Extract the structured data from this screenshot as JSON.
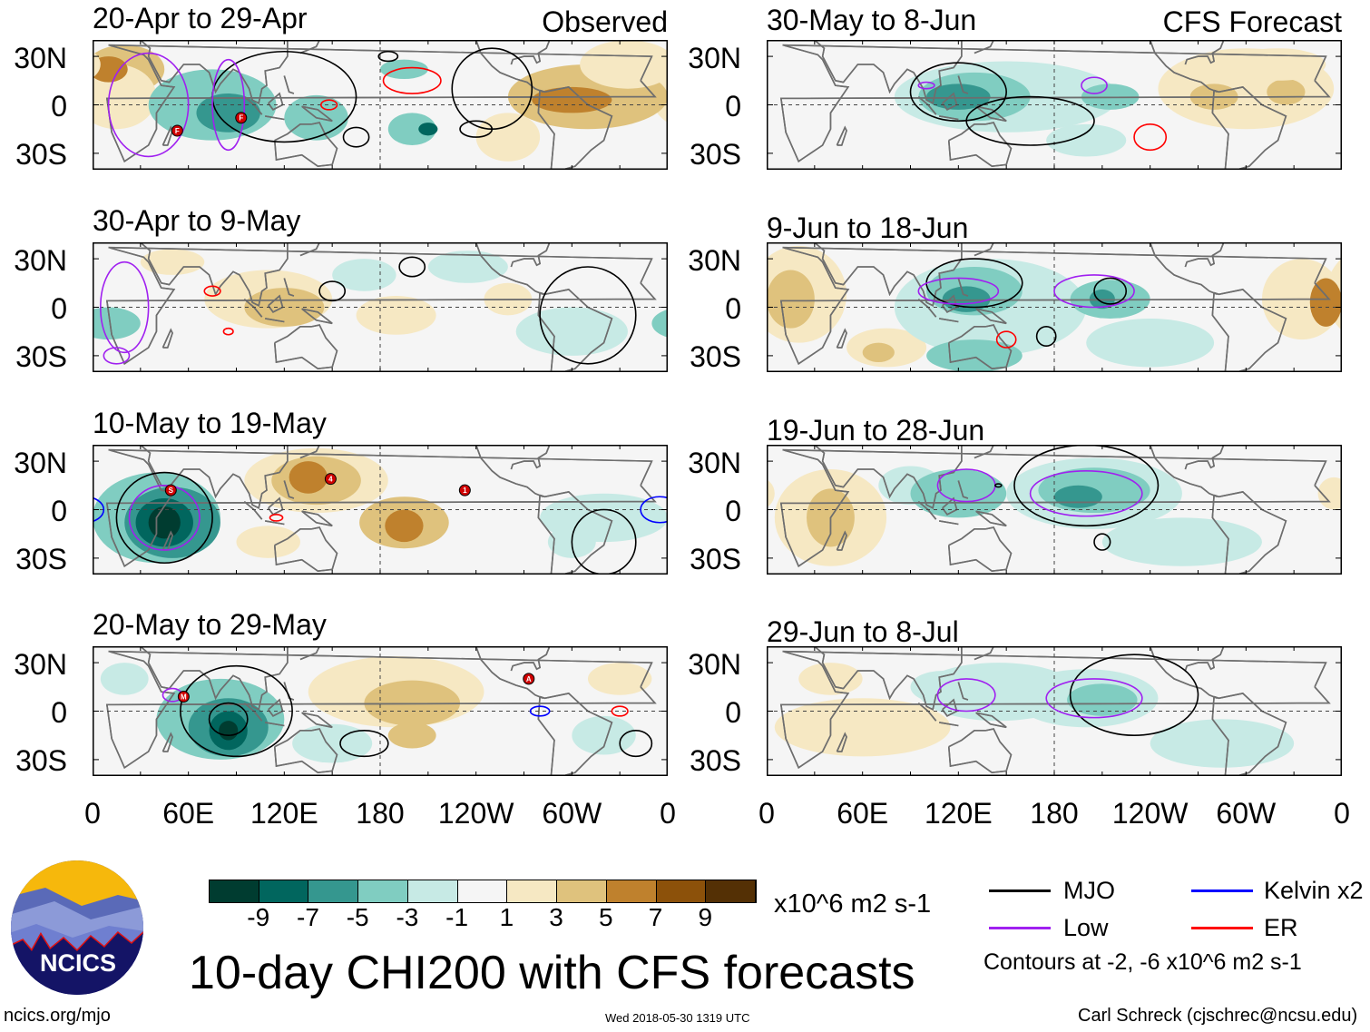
{
  "column_tags": {
    "observed": "Observed",
    "forecast": "CFS Forecast"
  },
  "lat_labels": [
    "30N",
    "0",
    "30S"
  ],
  "lon_labels": [
    "0",
    "60E",
    "120E",
    "180",
    "120W",
    "60W",
    "0"
  ],
  "panels": [
    {
      "title": "20-Apr to 29-Apr",
      "storms": [
        "F",
        "F"
      ]
    },
    {
      "title": "30-Apr to 9-May",
      "storms": []
    },
    {
      "title": "10-May to 19-May",
      "storms": [
        "S",
        "4",
        "1"
      ]
    },
    {
      "title": "20-May to 29-May",
      "storms": [
        "M",
        "A"
      ]
    },
    {
      "title": "30-May to 8-Jun",
      "storms": []
    },
    {
      "title": "9-Jun to 18-Jun",
      "storms": []
    },
    {
      "title": "19-Jun to 28-Jun",
      "storms": []
    },
    {
      "title": "29-Jun to 8-Jul",
      "storms": []
    }
  ],
  "colorbar": {
    "labels": [
      "-9",
      "-7",
      "-5",
      "-3",
      "-1",
      "1",
      "3",
      "5",
      "7",
      "9"
    ],
    "colors": [
      "#003c30",
      "#01665e",
      "#35978f",
      "#80cdc1",
      "#c7eae5",
      "#f5f5f5",
      "#f6e8c3",
      "#dfc27d",
      "#bf812d",
      "#8c510a",
      "#543005"
    ],
    "units": "x10^6 m2 s-1"
  },
  "legend": {
    "items": [
      {
        "label": "MJO",
        "color": "#000000"
      },
      {
        "label": "Kelvin x2",
        "color": "#0000ff"
      },
      {
        "label": "Low",
        "color": "#a020f0"
      },
      {
        "label": "ER",
        "color": "#ff0000"
      }
    ],
    "note": "Contours at -2, -6 x10^6 m2 s-1"
  },
  "title": "10-day CHI200 with CFS forecasts",
  "logo": {
    "text": "NCICS"
  },
  "footer": {
    "url": "ncics.org/mjo",
    "timestamp": "Wed 2018-05-30 1319 UTC",
    "credit": "Carl Schreck (cjschrec@ncsu.edu)"
  }
}
